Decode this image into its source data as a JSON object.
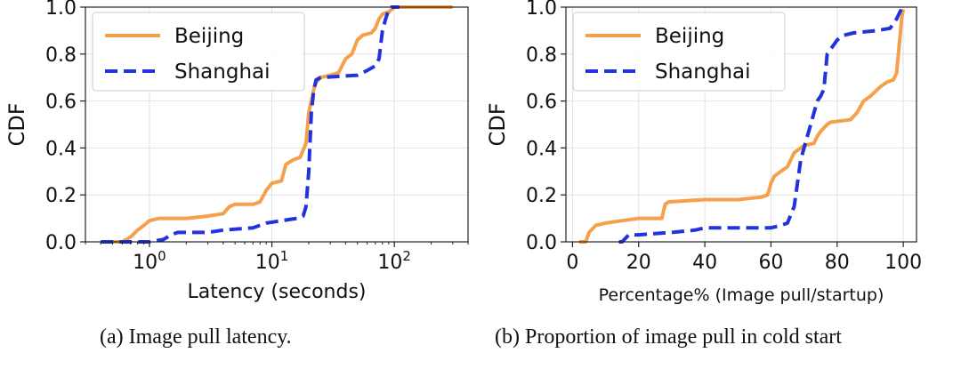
{
  "chart_data": [
    {
      "type": "line",
      "id": "a",
      "xscale": "log",
      "xlim": [
        0.3,
        400
      ],
      "ylim": [
        0,
        1.0
      ],
      "xlabel": "Latency (seconds)",
      "ylabel": "CDF",
      "xticks": [
        {
          "value": 1,
          "base": "10",
          "exp": "0"
        },
        {
          "value": 10,
          "base": "10",
          "exp": "1"
        },
        {
          "value": 100,
          "base": "10",
          "exp": "2"
        }
      ],
      "yticks": [
        "0.0",
        "0.2",
        "0.4",
        "0.6",
        "0.8",
        "1.0"
      ],
      "ytick_values": [
        0,
        0.2,
        0.4,
        0.6,
        0.8,
        1.0
      ],
      "grid": true,
      "legend": "top-left",
      "caption": "(a)  Image pull latency.",
      "series": [
        {
          "name": "Beijing",
          "color": "#f5a04a",
          "dash": "solid",
          "points": [
            [
              0.4,
              0.0
            ],
            [
              0.6,
              0.0
            ],
            [
              0.7,
              0.02
            ],
            [
              0.8,
              0.05
            ],
            [
              0.9,
              0.07
            ],
            [
              1.0,
              0.09
            ],
            [
              1.2,
              0.1
            ],
            [
              2,
              0.1
            ],
            [
              3,
              0.11
            ],
            [
              4,
              0.12
            ],
            [
              4.5,
              0.15
            ],
            [
              5,
              0.16
            ],
            [
              7,
              0.16
            ],
            [
              8,
              0.17
            ],
            [
              9,
              0.22
            ],
            [
              10,
              0.25
            ],
            [
              12,
              0.26
            ],
            [
              13,
              0.33
            ],
            [
              15,
              0.35
            ],
            [
              17,
              0.36
            ],
            [
              19,
              0.42
            ],
            [
              20,
              0.55
            ],
            [
              21,
              0.6
            ],
            [
              22,
              0.65
            ],
            [
              23,
              0.68
            ],
            [
              25,
              0.7
            ],
            [
              30,
              0.71
            ],
            [
              35,
              0.72
            ],
            [
              40,
              0.78
            ],
            [
              45,
              0.8
            ],
            [
              50,
              0.86
            ],
            [
              55,
              0.88
            ],
            [
              65,
              0.89
            ],
            [
              70,
              0.91
            ],
            [
              75,
              0.95
            ],
            [
              80,
              0.97
            ],
            [
              90,
              0.98
            ],
            [
              100,
              1.0
            ],
            [
              300,
              1.0
            ]
          ]
        },
        {
          "name": "Shanghai",
          "color": "#2233dd",
          "dash": "dashed",
          "points": [
            [
              0.4,
              0.0
            ],
            [
              1.0,
              0.0
            ],
            [
              1.3,
              0.01
            ],
            [
              1.5,
              0.03
            ],
            [
              1.7,
              0.04
            ],
            [
              3,
              0.04
            ],
            [
              4,
              0.05
            ],
            [
              7,
              0.06
            ],
            [
              9,
              0.08
            ],
            [
              12,
              0.09
            ],
            [
              16,
              0.1
            ],
            [
              18,
              0.11
            ],
            [
              19,
              0.15
            ],
            [
              20,
              0.3
            ],
            [
              21,
              0.55
            ],
            [
              22,
              0.65
            ],
            [
              23,
              0.69
            ],
            [
              25,
              0.7
            ],
            [
              50,
              0.71
            ],
            [
              60,
              0.73
            ],
            [
              70,
              0.75
            ],
            [
              75,
              0.78
            ],
            [
              80,
              0.9
            ],
            [
              85,
              0.95
            ],
            [
              90,
              0.99
            ],
            [
              95,
              1.0
            ],
            [
              110,
              1.0
            ]
          ]
        }
      ]
    },
    {
      "type": "line",
      "id": "b",
      "xscale": "linear",
      "xlim": [
        -2,
        104
      ],
      "ylim": [
        0,
        1.0
      ],
      "xlabel": "Percentage% (Image pull/startup)",
      "ylabel": "CDF",
      "xticks": [
        {
          "value": 0,
          "label": "0"
        },
        {
          "value": 20,
          "label": "20"
        },
        {
          "value": 40,
          "label": "40"
        },
        {
          "value": 60,
          "label": "60"
        },
        {
          "value": 80,
          "label": "80"
        },
        {
          "value": 100,
          "label": "100"
        }
      ],
      "yticks": [
        "0.0",
        "0.2",
        "0.4",
        "0.6",
        "0.8",
        "1.0"
      ],
      "ytick_values": [
        0,
        0.2,
        0.4,
        0.6,
        0.8,
        1.0
      ],
      "grid": true,
      "legend": "top-left",
      "caption": "(b)  Proportion of image pull in cold start",
      "series": [
        {
          "name": "Beijing",
          "color": "#f5a04a",
          "dash": "solid",
          "points": [
            [
              2,
              0.0
            ],
            [
              4,
              0.0
            ],
            [
              5,
              0.04
            ],
            [
              7,
              0.07
            ],
            [
              10,
              0.08
            ],
            [
              15,
              0.09
            ],
            [
              20,
              0.1
            ],
            [
              27,
              0.1
            ],
            [
              28,
              0.16
            ],
            [
              29,
              0.17
            ],
            [
              40,
              0.18
            ],
            [
              50,
              0.18
            ],
            [
              57,
              0.19
            ],
            [
              59,
              0.2
            ],
            [
              60,
              0.25
            ],
            [
              61,
              0.28
            ],
            [
              63,
              0.3
            ],
            [
              65,
              0.32
            ],
            [
              67,
              0.38
            ],
            [
              70,
              0.41
            ],
            [
              73,
              0.42
            ],
            [
              74,
              0.45
            ],
            [
              75,
              0.47
            ],
            [
              77,
              0.5
            ],
            [
              78,
              0.51
            ],
            [
              84,
              0.52
            ],
            [
              86,
              0.55
            ],
            [
              88,
              0.6
            ],
            [
              90,
              0.62
            ],
            [
              93,
              0.66
            ],
            [
              95,
              0.68
            ],
            [
              97,
              0.69
            ],
            [
              98,
              0.72
            ],
            [
              98.5,
              0.8
            ],
            [
              99,
              0.87
            ],
            [
              99.5,
              0.95
            ],
            [
              100,
              0.99
            ]
          ]
        },
        {
          "name": "Shanghai",
          "color": "#2233dd",
          "dash": "dashed",
          "points": [
            [
              14,
              0.0
            ],
            [
              15,
              0.0
            ],
            [
              17,
              0.03
            ],
            [
              20,
              0.03
            ],
            [
              30,
              0.04
            ],
            [
              37,
              0.05
            ],
            [
              40,
              0.06
            ],
            [
              50,
              0.06
            ],
            [
              55,
              0.06
            ],
            [
              60,
              0.06
            ],
            [
              63,
              0.07
            ],
            [
              65,
              0.08
            ],
            [
              67,
              0.15
            ],
            [
              68,
              0.25
            ],
            [
              69,
              0.35
            ],
            [
              70,
              0.4
            ],
            [
              72,
              0.5
            ],
            [
              73,
              0.55
            ],
            [
              74,
              0.6
            ],
            [
              75,
              0.62
            ],
            [
              76,
              0.65
            ],
            [
              77,
              0.8
            ],
            [
              78,
              0.82
            ],
            [
              80,
              0.86
            ],
            [
              82,
              0.88
            ],
            [
              85,
              0.89
            ],
            [
              92,
              0.9
            ],
            [
              96,
              0.91
            ],
            [
              98,
              0.95
            ],
            [
              99,
              0.98
            ],
            [
              100,
              1.0
            ]
          ]
        }
      ]
    }
  ]
}
